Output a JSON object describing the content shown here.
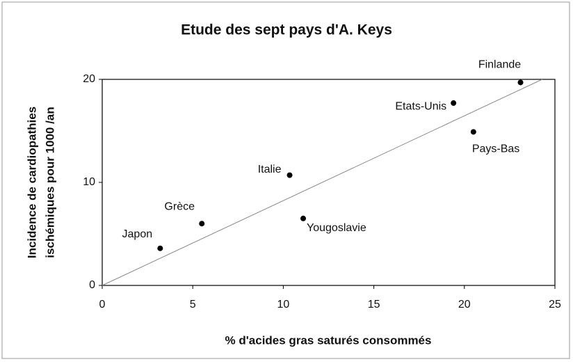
{
  "chart_data": {
    "type": "scatter",
    "title": "Etude des sept pays d'A. Keys",
    "xlabel": "% d'acides gras saturés consommés",
    "ylabel": [
      "Incidence de cardiopathies",
      "ischémiques pour 1000 /an"
    ],
    "labels": [
      "Japon",
      "Grèce",
      "Italie",
      "Yougoslavie",
      "Etats-Unis",
      "Pays-Bas",
      "Finlande"
    ],
    "x": [
      3.2,
      5.5,
      10.35,
      11.1,
      19.4,
      20.5,
      23.1
    ],
    "values": [
      3.6,
      6.0,
      10.7,
      6.5,
      17.7,
      14.9,
      19.7
    ],
    "color": "#000000",
    "trendline": {
      "x": [
        0,
        24.3
      ],
      "y": [
        0,
        20
      ]
    },
    "xlim": [
      0,
      25
    ],
    "xticks": [
      0,
      5,
      10,
      15,
      20,
      25
    ],
    "ylim": [
      0,
      20
    ],
    "yticks": [
      0,
      10,
      20
    ],
    "grid": false
  }
}
